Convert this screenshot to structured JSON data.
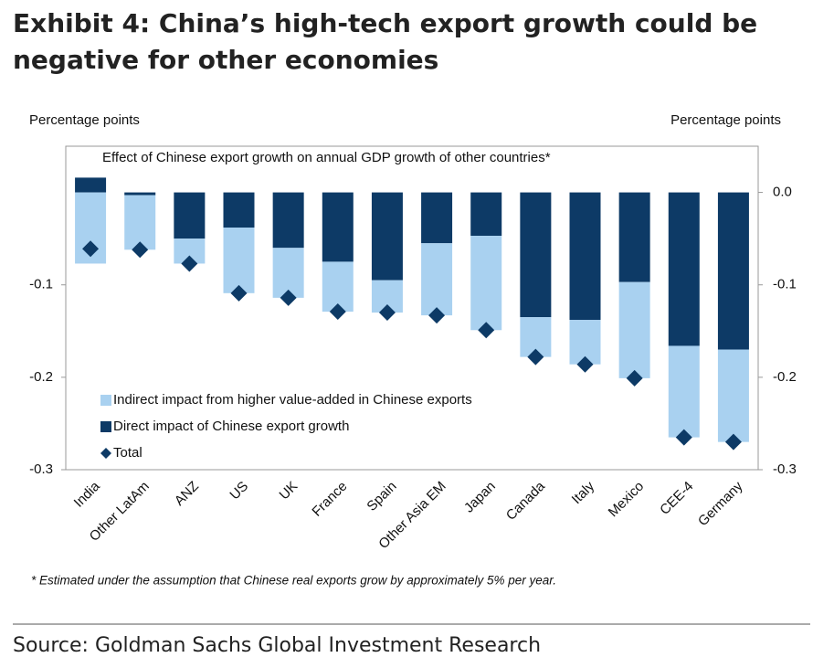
{
  "chart_data": {
    "type": "bar",
    "title": "Exhibit 4: China’s high-tech export growth could be negative for other economies",
    "subtitle": "Effect of Chinese export growth on annual GDP growth of other countries*",
    "ylabel": "Percentage points",
    "y2label": "Percentage points",
    "footnote": "* Estimated under the assumption that Chinese real exports grow by approximately 5% per year.",
    "source": "Source: Goldman Sachs Global Investment Research",
    "categories": [
      "India",
      "Other LatAm",
      "ANZ",
      "US",
      "UK",
      "France",
      "Spain",
      "Other Asia EM",
      "Japan",
      "Canada",
      "Italy",
      "Mexico",
      "CEE-4",
      "Germany"
    ],
    "series": [
      {
        "name": "Indirect impact from higher value-added in Chinese exports",
        "color": "#a9d1f0",
        "values": [
          -0.077,
          -0.059,
          -0.027,
          -0.071,
          -0.054,
          -0.054,
          -0.035,
          -0.078,
          -0.102,
          -0.043,
          -0.048,
          -0.104,
          -0.099,
          -0.1
        ]
      },
      {
        "name": "Direct impact of Chinese export growth",
        "color": "#0d3a66",
        "values": [
          0.016,
          -0.003,
          -0.05,
          -0.038,
          -0.06,
          -0.075,
          -0.095,
          -0.055,
          -0.047,
          -0.135,
          -0.138,
          -0.097,
          -0.166,
          -0.17
        ]
      },
      {
        "name": "Total",
        "color": "#0d3a66",
        "marker": "diamond",
        "values": [
          -0.061,
          -0.062,
          -0.077,
          -0.109,
          -0.114,
          -0.129,
          -0.13,
          -0.133,
          -0.149,
          -0.178,
          -0.186,
          -0.201,
          -0.265,
          -0.27
        ]
      }
    ],
    "ylim": [
      -0.3,
      0.05
    ],
    "yticks": [
      -0.1,
      -0.2,
      -0.3
    ],
    "y2lim": [
      -0.3,
      0.05
    ],
    "y2ticks": [
      {
        "value": 0,
        "label": "0.0"
      },
      -0.1,
      -0.2,
      -0.3
    ],
    "legend": "lower left"
  }
}
